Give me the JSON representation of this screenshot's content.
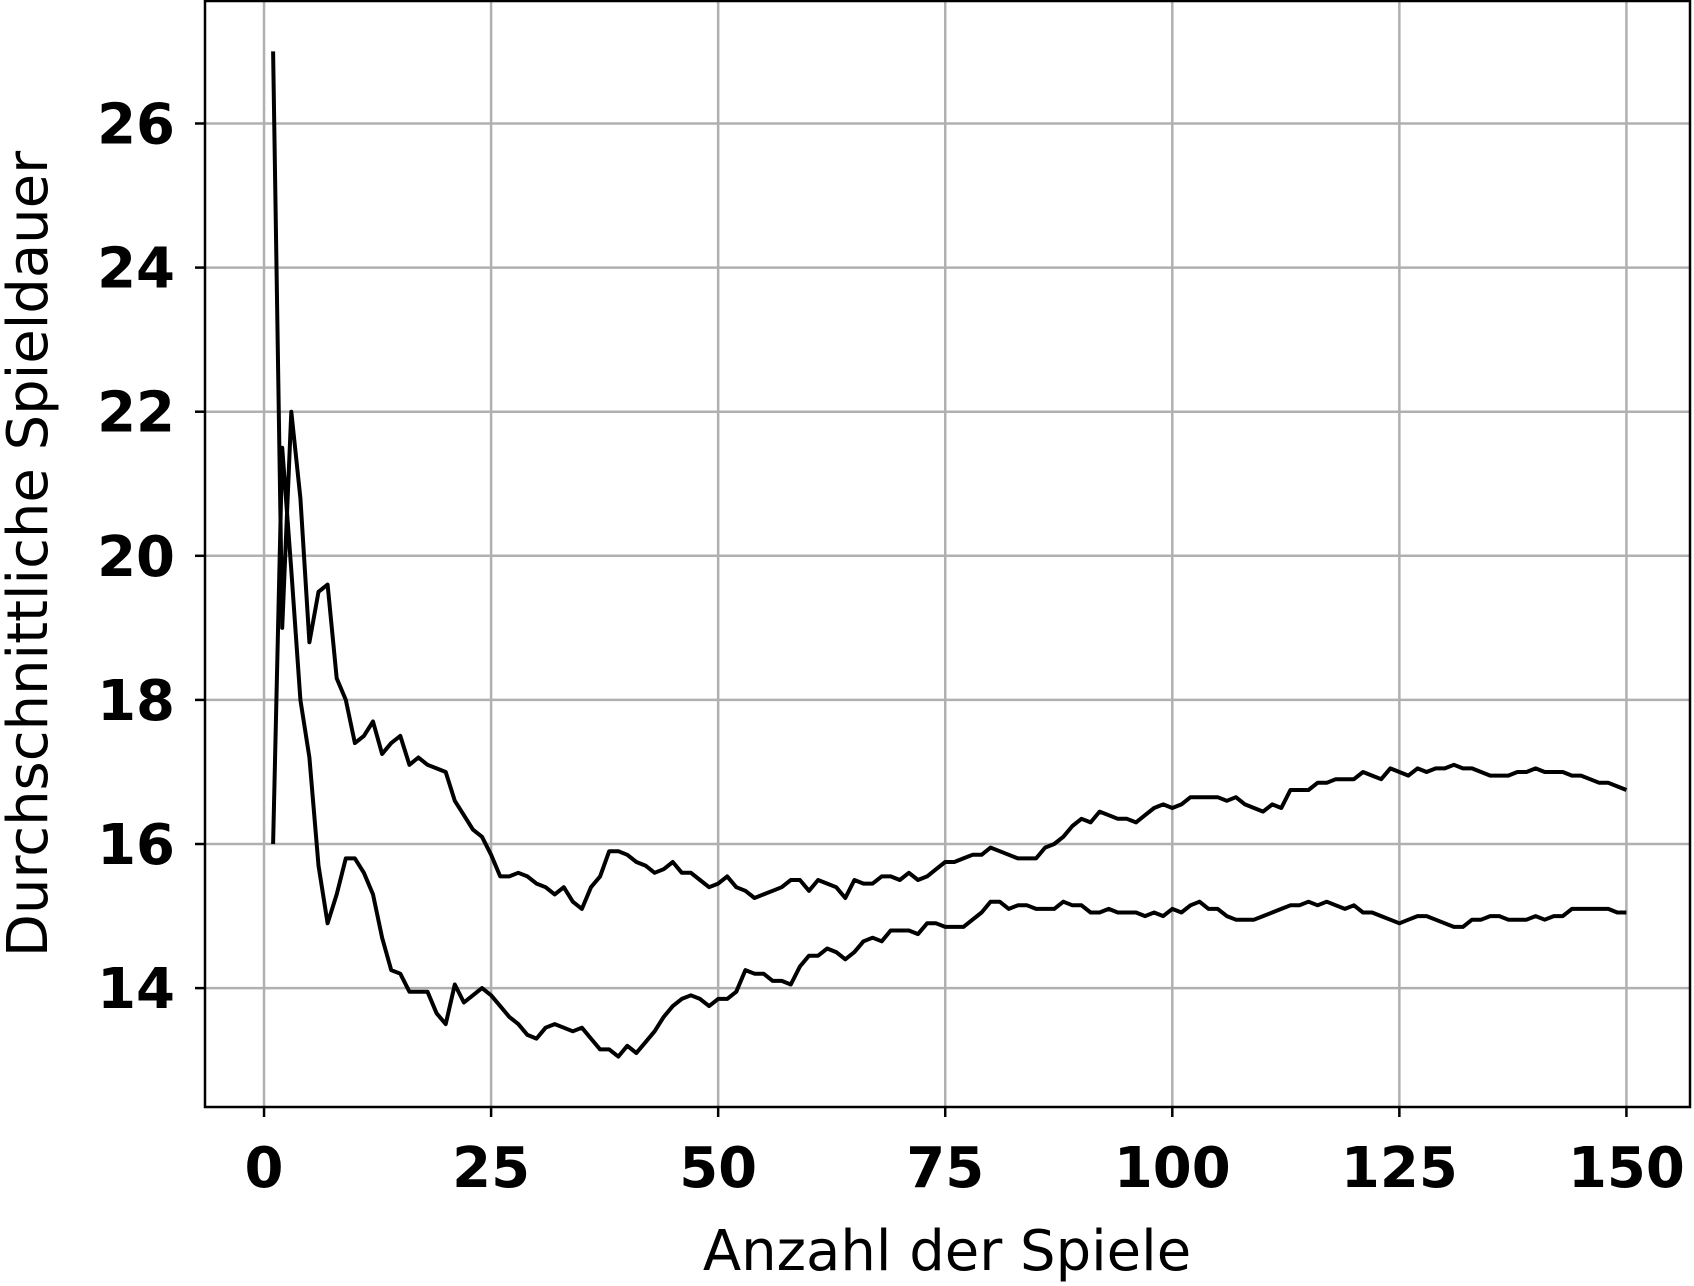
{
  "chart_data": {
    "type": "line",
    "title": "",
    "xlabel": "Anzahl der Spiele",
    "ylabel": "Durchschnittliche Spieldauer",
    "xlim": [
      -6.5,
      157
    ],
    "ylim": [
      12.35,
      27.7
    ],
    "xticks": [
      0,
      25,
      50,
      75,
      100,
      125,
      150
    ],
    "yticks": [
      14,
      16,
      18,
      20,
      22,
      24,
      26
    ],
    "grid": true,
    "legend": "none",
    "line_color": "#000000",
    "series": [
      {
        "points": [
          [
            1,
            27.0
          ],
          [
            2,
            19.0
          ],
          [
            3,
            22.0
          ],
          [
            4,
            20.8
          ],
          [
            5,
            18.8
          ],
          [
            6,
            19.5
          ],
          [
            7,
            19.6
          ],
          [
            8,
            18.3
          ],
          [
            9,
            18.0
          ],
          [
            10,
            17.4
          ],
          [
            11,
            17.5
          ],
          [
            12,
            17.7
          ],
          [
            13,
            17.25
          ],
          [
            14,
            17.4
          ],
          [
            15,
            17.5
          ],
          [
            16,
            17.1
          ],
          [
            17,
            17.2
          ],
          [
            18,
            17.1
          ],
          [
            19,
            17.05
          ],
          [
            20,
            17.0
          ],
          [
            21,
            16.6
          ],
          [
            22,
            16.4
          ],
          [
            23,
            16.2
          ],
          [
            24,
            16.1
          ],
          [
            25,
            15.85
          ],
          [
            26,
            15.55
          ],
          [
            27,
            15.55
          ],
          [
            28,
            15.6
          ],
          [
            29,
            15.55
          ],
          [
            30,
            15.45
          ],
          [
            31,
            15.4
          ],
          [
            32,
            15.3
          ],
          [
            33,
            15.4
          ],
          [
            34,
            15.2
          ],
          [
            35,
            15.1
          ],
          [
            36,
            15.4
          ],
          [
            37,
            15.55
          ],
          [
            38,
            15.9
          ],
          [
            39,
            15.9
          ],
          [
            40,
            15.85
          ],
          [
            41,
            15.75
          ],
          [
            42,
            15.7
          ],
          [
            43,
            15.6
          ],
          [
            44,
            15.65
          ],
          [
            45,
            15.75
          ],
          [
            46,
            15.6
          ],
          [
            47,
            15.6
          ],
          [
            48,
            15.5
          ],
          [
            49,
            15.4
          ],
          [
            50,
            15.45
          ],
          [
            51,
            15.55
          ],
          [
            52,
            15.4
          ],
          [
            53,
            15.35
          ],
          [
            54,
            15.25
          ],
          [
            55,
            15.3
          ],
          [
            56,
            15.35
          ],
          [
            57,
            15.4
          ],
          [
            58,
            15.5
          ],
          [
            59,
            15.5
          ],
          [
            60,
            15.35
          ],
          [
            61,
            15.5
          ],
          [
            62,
            15.45
          ],
          [
            63,
            15.4
          ],
          [
            64,
            15.25
          ],
          [
            65,
            15.5
          ],
          [
            66,
            15.45
          ],
          [
            67,
            15.45
          ],
          [
            68,
            15.55
          ],
          [
            69,
            15.55
          ],
          [
            70,
            15.5
          ],
          [
            71,
            15.6
          ],
          [
            72,
            15.5
          ],
          [
            73,
            15.55
          ],
          [
            74,
            15.65
          ],
          [
            75,
            15.75
          ],
          [
            76,
            15.75
          ],
          [
            77,
            15.8
          ],
          [
            78,
            15.85
          ],
          [
            79,
            15.85
          ],
          [
            80,
            15.95
          ],
          [
            81,
            15.9
          ],
          [
            82,
            15.85
          ],
          [
            83,
            15.8
          ],
          [
            84,
            15.8
          ],
          [
            85,
            15.8
          ],
          [
            86,
            15.95
          ],
          [
            87,
            16.0
          ],
          [
            88,
            16.1
          ],
          [
            89,
            16.25
          ],
          [
            90,
            16.35
          ],
          [
            91,
            16.3
          ],
          [
            92,
            16.45
          ],
          [
            93,
            16.4
          ],
          [
            94,
            16.35
          ],
          [
            95,
            16.35
          ],
          [
            96,
            16.3
          ],
          [
            97,
            16.4
          ],
          [
            98,
            16.5
          ],
          [
            99,
            16.55
          ],
          [
            100,
            16.5
          ],
          [
            101,
            16.55
          ],
          [
            102,
            16.65
          ],
          [
            103,
            16.65
          ],
          [
            104,
            16.65
          ],
          [
            105,
            16.65
          ],
          [
            106,
            16.6
          ],
          [
            107,
            16.65
          ],
          [
            108,
            16.55
          ],
          [
            109,
            16.5
          ],
          [
            110,
            16.45
          ],
          [
            111,
            16.55
          ],
          [
            112,
            16.5
          ],
          [
            113,
            16.75
          ],
          [
            114,
            16.75
          ],
          [
            115,
            16.75
          ],
          [
            116,
            16.85
          ],
          [
            117,
            16.85
          ],
          [
            118,
            16.9
          ],
          [
            119,
            16.9
          ],
          [
            120,
            16.9
          ],
          [
            121,
            17.0
          ],
          [
            122,
            16.95
          ],
          [
            123,
            16.9
          ],
          [
            124,
            17.05
          ],
          [
            125,
            17.0
          ],
          [
            126,
            16.95
          ],
          [
            127,
            17.05
          ],
          [
            128,
            17.0
          ],
          [
            129,
            17.05
          ],
          [
            130,
            17.05
          ],
          [
            131,
            17.1
          ],
          [
            132,
            17.05
          ],
          [
            133,
            17.05
          ],
          [
            134,
            17.0
          ],
          [
            135,
            16.95
          ],
          [
            136,
            16.95
          ],
          [
            137,
            16.95
          ],
          [
            138,
            17.0
          ],
          [
            139,
            17.0
          ],
          [
            140,
            17.05
          ],
          [
            141,
            17.0
          ],
          [
            142,
            17.0
          ],
          [
            143,
            17.0
          ],
          [
            144,
            16.95
          ],
          [
            145,
            16.95
          ],
          [
            146,
            16.9
          ],
          [
            147,
            16.85
          ],
          [
            148,
            16.85
          ],
          [
            149,
            16.8
          ],
          [
            150,
            16.75
          ]
        ]
      },
      {
        "points": [
          [
            1,
            16.0
          ],
          [
            2,
            21.5
          ],
          [
            3,
            19.8
          ],
          [
            4,
            18.0
          ],
          [
            5,
            17.2
          ],
          [
            6,
            15.7
          ],
          [
            7,
            14.9
          ],
          [
            8,
            15.3
          ],
          [
            9,
            15.8
          ],
          [
            10,
            15.8
          ],
          [
            11,
            15.6
          ],
          [
            12,
            15.3
          ],
          [
            13,
            14.7
          ],
          [
            14,
            14.25
          ],
          [
            15,
            14.2
          ],
          [
            16,
            13.95
          ],
          [
            17,
            13.95
          ],
          [
            18,
            13.95
          ],
          [
            19,
            13.65
          ],
          [
            20,
            13.5
          ],
          [
            21,
            14.05
          ],
          [
            22,
            13.8
          ],
          [
            23,
            13.9
          ],
          [
            24,
            14.0
          ],
          [
            25,
            13.9
          ],
          [
            26,
            13.75
          ],
          [
            27,
            13.6
          ],
          [
            28,
            13.5
          ],
          [
            29,
            13.35
          ],
          [
            30,
            13.3
          ],
          [
            31,
            13.45
          ],
          [
            32,
            13.5
          ],
          [
            33,
            13.45
          ],
          [
            34,
            13.4
          ],
          [
            35,
            13.45
          ],
          [
            36,
            13.3
          ],
          [
            37,
            13.15
          ],
          [
            38,
            13.15
          ],
          [
            39,
            13.05
          ],
          [
            40,
            13.2
          ],
          [
            41,
            13.1
          ],
          [
            42,
            13.25
          ],
          [
            43,
            13.4
          ],
          [
            44,
            13.6
          ],
          [
            45,
            13.75
          ],
          [
            46,
            13.85
          ],
          [
            47,
            13.9
          ],
          [
            48,
            13.85
          ],
          [
            49,
            13.75
          ],
          [
            50,
            13.85
          ],
          [
            51,
            13.85
          ],
          [
            52,
            13.95
          ],
          [
            53,
            14.25
          ],
          [
            54,
            14.2
          ],
          [
            55,
            14.2
          ],
          [
            56,
            14.1
          ],
          [
            57,
            14.1
          ],
          [
            58,
            14.05
          ],
          [
            59,
            14.3
          ],
          [
            60,
            14.45
          ],
          [
            61,
            14.45
          ],
          [
            62,
            14.55
          ],
          [
            63,
            14.5
          ],
          [
            64,
            14.4
          ],
          [
            65,
            14.5
          ],
          [
            66,
            14.65
          ],
          [
            67,
            14.7
          ],
          [
            68,
            14.65
          ],
          [
            69,
            14.8
          ],
          [
            70,
            14.8
          ],
          [
            71,
            14.8
          ],
          [
            72,
            14.75
          ],
          [
            73,
            14.9
          ],
          [
            74,
            14.9
          ],
          [
            75,
            14.85
          ],
          [
            76,
            14.85
          ],
          [
            77,
            14.85
          ],
          [
            78,
            14.95
          ],
          [
            79,
            15.05
          ],
          [
            80,
            15.2
          ],
          [
            81,
            15.2
          ],
          [
            82,
            15.1
          ],
          [
            83,
            15.15
          ],
          [
            84,
            15.15
          ],
          [
            85,
            15.1
          ],
          [
            86,
            15.1
          ],
          [
            87,
            15.1
          ],
          [
            88,
            15.2
          ],
          [
            89,
            15.15
          ],
          [
            90,
            15.15
          ],
          [
            91,
            15.05
          ],
          [
            92,
            15.05
          ],
          [
            93,
            15.1
          ],
          [
            94,
            15.05
          ],
          [
            95,
            15.05
          ],
          [
            96,
            15.05
          ],
          [
            97,
            15.0
          ],
          [
            98,
            15.05
          ],
          [
            99,
            15.0
          ],
          [
            100,
            15.1
          ],
          [
            101,
            15.05
          ],
          [
            102,
            15.15
          ],
          [
            103,
            15.2
          ],
          [
            104,
            15.1
          ],
          [
            105,
            15.1
          ],
          [
            106,
            15.0
          ],
          [
            107,
            14.95
          ],
          [
            108,
            14.95
          ],
          [
            109,
            14.95
          ],
          [
            110,
            15.0
          ],
          [
            111,
            15.05
          ],
          [
            112,
            15.1
          ],
          [
            113,
            15.15
          ],
          [
            114,
            15.15
          ],
          [
            115,
            15.2
          ],
          [
            116,
            15.15
          ],
          [
            117,
            15.2
          ],
          [
            118,
            15.15
          ],
          [
            119,
            15.1
          ],
          [
            120,
            15.15
          ],
          [
            121,
            15.05
          ],
          [
            122,
            15.05
          ],
          [
            123,
            15.0
          ],
          [
            124,
            14.95
          ],
          [
            125,
            14.9
          ],
          [
            126,
            14.95
          ],
          [
            127,
            15.0
          ],
          [
            128,
            15.0
          ],
          [
            129,
            14.95
          ],
          [
            130,
            14.9
          ],
          [
            131,
            14.85
          ],
          [
            132,
            14.85
          ],
          [
            133,
            14.95
          ],
          [
            134,
            14.95
          ],
          [
            135,
            15.0
          ],
          [
            136,
            15.0
          ],
          [
            137,
            14.95
          ],
          [
            138,
            14.95
          ],
          [
            139,
            14.95
          ],
          [
            140,
            15.0
          ],
          [
            141,
            14.95
          ],
          [
            142,
            15.0
          ],
          [
            143,
            15.0
          ],
          [
            144,
            15.1
          ],
          [
            145,
            15.1
          ],
          [
            146,
            15.1
          ],
          [
            147,
            15.1
          ],
          [
            148,
            15.1
          ],
          [
            149,
            15.05
          ],
          [
            150,
            15.05
          ]
        ]
      }
    ]
  }
}
